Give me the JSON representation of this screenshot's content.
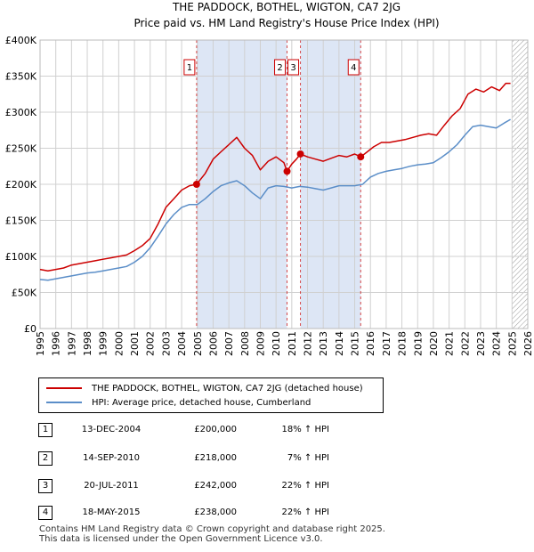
{
  "chart_data": {
    "type": "line",
    "title": "THE PADDOCK, BOTHEL, WIGTON, CA7 2JG",
    "subtitle": "Price paid vs. HM Land Registry's House Price Index (HPI)",
    "xlabel": "",
    "ylabel": "",
    "xlim": [
      1995,
      2026
    ],
    "ylim": [
      0,
      400000
    ],
    "x_ticks": [
      "1995",
      "1996",
      "1997",
      "1998",
      "1999",
      "2000",
      "2001",
      "2002",
      "2003",
      "2004",
      "2005",
      "2006",
      "2007",
      "2008",
      "2009",
      "2010",
      "2011",
      "2012",
      "2013",
      "2014",
      "2015",
      "2016",
      "2017",
      "2018",
      "2019",
      "2020",
      "2021",
      "2022",
      "2023",
      "2024",
      "2025",
      "2026"
    ],
    "y_ticks": [
      {
        "value": 0,
        "label": "£0"
      },
      {
        "value": 50000,
        "label": "£50K"
      },
      {
        "value": 100000,
        "label": "£100K"
      },
      {
        "value": 150000,
        "label": "£150K"
      },
      {
        "value": 200000,
        "label": "£200K"
      },
      {
        "value": 250000,
        "label": "£250K"
      },
      {
        "value": 300000,
        "label": "£300K"
      },
      {
        "value": 350000,
        "label": "£350K"
      },
      {
        "value": 400000,
        "label": "£400K"
      }
    ],
    "grid": true,
    "series": [
      {
        "name": "THE PADDOCK, BOTHEL, WIGTON, CA7 2JG (detached house)",
        "color": "#cc0000",
        "x": [
          1995.0,
          1995.5,
          1996.0,
          1996.5,
          1997.0,
          1997.5,
          1998.0,
          1998.5,
          1999.0,
          1999.5,
          2000.0,
          2000.5,
          2001.0,
          2001.5,
          2002.0,
          2002.5,
          2003.0,
          2003.5,
          2004.0,
          2004.5,
          2004.95,
          2005.5,
          2006.0,
          2006.5,
          2007.0,
          2007.5,
          2008.0,
          2008.5,
          2009.0,
          2009.5,
          2010.0,
          2010.5,
          2010.7,
          2011.0,
          2011.3,
          2011.55,
          2012.0,
          2012.5,
          2013.0,
          2013.5,
          2014.0,
          2014.5,
          2015.0,
          2015.38,
          2015.8,
          2016.2,
          2016.7,
          2017.2,
          2017.7,
          2018.2,
          2018.7,
          2019.2,
          2019.7,
          2020.2,
          2020.7,
          2021.2,
          2021.7,
          2022.2,
          2022.7,
          2023.2,
          2023.7,
          2024.2,
          2024.6,
          2024.9
        ],
        "values": [
          82000,
          80000,
          82000,
          84000,
          88000,
          90000,
          92000,
          94000,
          96000,
          98000,
          100000,
          102000,
          108000,
          115000,
          125000,
          145000,
          168000,
          180000,
          192000,
          198000,
          200000,
          215000,
          235000,
          245000,
          255000,
          265000,
          250000,
          240000,
          220000,
          232000,
          238000,
          230000,
          218000,
          228000,
          235000,
          242000,
          238000,
          235000,
          232000,
          236000,
          240000,
          238000,
          242000,
          238000,
          245000,
          252000,
          258000,
          258000,
          260000,
          262000,
          265000,
          268000,
          270000,
          268000,
          282000,
          295000,
          305000,
          325000,
          332000,
          328000,
          335000,
          330000,
          340000,
          340000
        ]
      },
      {
        "name": "HPI: Average price, detached house, Cumberland",
        "color": "#5b8ec8",
        "x": [
          1995.0,
          1995.5,
          1996.0,
          1996.5,
          1997.0,
          1997.5,
          1998.0,
          1998.5,
          1999.0,
          1999.5,
          2000.0,
          2000.5,
          2001.0,
          2001.5,
          2002.0,
          2002.5,
          2003.0,
          2003.5,
          2004.0,
          2004.5,
          2005.0,
          2005.5,
          2006.0,
          2006.5,
          2007.0,
          2007.5,
          2008.0,
          2008.5,
          2009.0,
          2009.5,
          2010.0,
          2010.5,
          2011.0,
          2011.5,
          2012.0,
          2012.5,
          2013.0,
          2013.5,
          2014.0,
          2014.5,
          2015.0,
          2015.5,
          2016.0,
          2016.5,
          2017.0,
          2017.5,
          2018.0,
          2018.5,
          2019.0,
          2019.5,
          2020.0,
          2020.5,
          2021.0,
          2021.5,
          2022.0,
          2022.5,
          2023.0,
          2023.5,
          2024.0,
          2024.5,
          2024.9
        ],
        "values": [
          68000,
          67000,
          69000,
          71000,
          73000,
          75000,
          77000,
          78000,
          80000,
          82000,
          84000,
          86000,
          92000,
          100000,
          112000,
          128000,
          145000,
          158000,
          168000,
          172000,
          172000,
          180000,
          190000,
          198000,
          202000,
          205000,
          198000,
          188000,
          180000,
          195000,
          198000,
          197000,
          195000,
          197000,
          196000,
          194000,
          192000,
          195000,
          198000,
          198000,
          198000,
          200000,
          210000,
          215000,
          218000,
          220000,
          222000,
          225000,
          227000,
          228000,
          230000,
          237000,
          245000,
          255000,
          268000,
          280000,
          282000,
          280000,
          278000,
          285000,
          290000
        ]
      }
    ],
    "transactions": [
      {
        "label": "1",
        "x": 2004.95,
        "value": 200000
      },
      {
        "label": "2",
        "x": 2010.7,
        "value": 218000
      },
      {
        "label": "3",
        "x": 2011.55,
        "value": 242000
      },
      {
        "label": "4",
        "x": 2015.38,
        "value": 238000
      }
    ],
    "shaded_ranges": [
      [
        2004.95,
        2010.7
      ],
      [
        2011.55,
        2015.38
      ]
    ],
    "hatched_after": 2025.0,
    "shade_color": "#dde6f5",
    "marker_color": "#cc0000"
  },
  "legend": {
    "property_label": "THE PADDOCK, BOTHEL, WIGTON, CA7 2JG (detached house)",
    "hpi_label": "HPI: Average price, detached house, Cumberland"
  },
  "table": [
    {
      "num": "1",
      "date": "13-DEC-2004",
      "price": "£200,000",
      "hpi": "18% ↑ HPI"
    },
    {
      "num": "2",
      "date": "14-SEP-2010",
      "price": "£218,000",
      "hpi": "7% ↑ HPI"
    },
    {
      "num": "3",
      "date": "20-JUL-2011",
      "price": "£242,000",
      "hpi": "22% ↑ HPI"
    },
    {
      "num": "4",
      "date": "18-MAY-2015",
      "price": "£238,000",
      "hpi": "22% ↑ HPI"
    }
  ],
  "footer": {
    "line1": "Contains HM Land Registry data © Crown copyright and database right 2025.",
    "line2": "This data is licensed under the Open Government Licence v3.0."
  }
}
